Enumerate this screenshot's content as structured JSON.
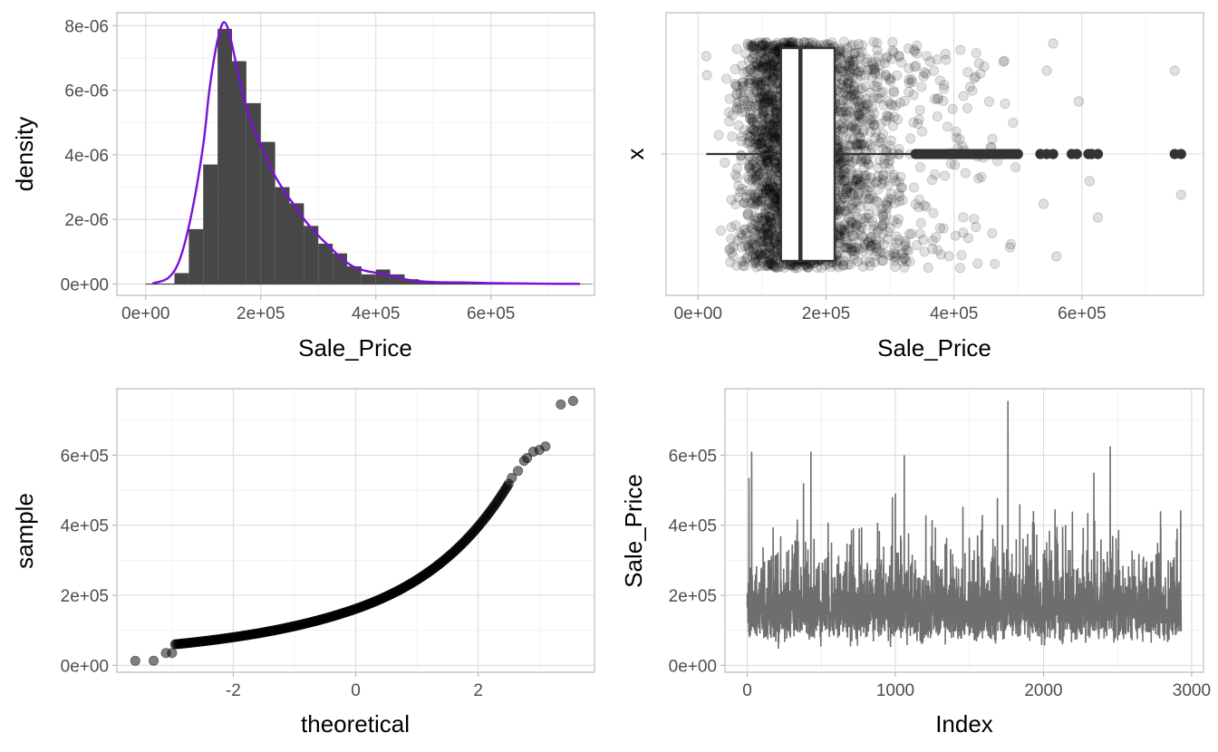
{
  "chart_data": [
    {
      "panel": "histogram-density",
      "type": "bar",
      "xlabel": "Sale_Price",
      "ylabel": "density",
      "xlim": [
        -50000,
        780000
      ],
      "ylim": [
        -3.5e-07,
        8.4e-06
      ],
      "x_ticks": [
        0,
        200000,
        400000,
        600000
      ],
      "x_tick_labels": [
        "0e+00",
        "2e+05",
        "4e+05",
        "6e+05"
      ],
      "y_ticks": [
        0,
        2e-06,
        4e-06,
        6e-06,
        8e-06
      ],
      "y_tick_labels": [
        "0e+00",
        "2e-06",
        "4e-06",
        "6e-06",
        "8e-06"
      ],
      "bin_width": 25000,
      "bin_starts": [
        0,
        25000,
        50000,
        75000,
        100000,
        125000,
        150000,
        175000,
        200000,
        225000,
        250000,
        275000,
        300000,
        325000,
        350000,
        375000,
        400000,
        425000,
        450000,
        475000,
        500000,
        525000,
        550000,
        575000,
        600000,
        625000,
        650000,
        675000,
        700000,
        725000,
        750000
      ],
      "bar_values": [
        0.0,
        0.0,
        3.4e-07,
        1.7e-06,
        3.7e-06,
        7.9e-06,
        6.9e-06,
        5.6e-06,
        4.4e-06,
        3e-06,
        2.5e-06,
        1.8e-06,
        1.25e-06,
        9.5e-07,
        5.5e-07,
        3e-07,
        4.5e-07,
        3e-07,
        1.5e-07,
        1e-07,
        5e-08,
        3e-08,
        3e-08,
        2e-08,
        3e-08,
        2e-08,
        0.0,
        0.0,
        0.0,
        1e-08,
        1e-08
      ],
      "density_x": [
        12000,
        40000,
        60000,
        80000,
        100000,
        110000,
        120000,
        130000,
        137000,
        145000,
        155000,
        165000,
        180000,
        200000,
        220000,
        240000,
        260000,
        280000,
        300000,
        320000,
        340000,
        360000,
        380000,
        400000,
        430000,
        460000,
        500000,
        550000,
        600000,
        650000,
        700000,
        755000
      ],
      "density_y": [
        2e-08,
        2e-07,
        8e-07,
        2.2e-06,
        4.3e-06,
        5.9e-06,
        7.1e-06,
        7.9e-06,
        8.1e-06,
        7.8e-06,
        7e-06,
        6.2e-06,
        5.2e-06,
        4.3e-06,
        3.5e-06,
        2.9e-06,
        2.4e-06,
        1.9e-06,
        1.5e-06,
        1.15e-06,
        8e-07,
        5.5e-07,
        4.2e-07,
        3.5e-07,
        2.5e-07,
        1.2e-07,
        6e-08,
        5e-08,
        3e-08,
        2e-08,
        1e-08,
        5e-09
      ],
      "bar_color": "#474747",
      "density_color": "#7a10d9"
    },
    {
      "panel": "boxplot-jitter",
      "type": "scatter",
      "xlabel": "Sale_Price",
      "ylabel": "x",
      "xlim": [
        -50000,
        790000
      ],
      "x_ticks": [
        0,
        200000,
        400000,
        600000
      ],
      "x_tick_labels": [
        "0e+00",
        "2e+05",
        "4e+05",
        "6e+05"
      ],
      "box": {
        "whisker_low": 12789,
        "q1": 129500,
        "median": 160000,
        "q3": 213500,
        "whisker_high": 339500
      },
      "outliers": [
        340000,
        345000,
        350000,
        355000,
        360000,
        365000,
        370000,
        375000,
        380000,
        385000,
        390000,
        395000,
        400000,
        405000,
        410000,
        415000,
        420000,
        425000,
        430000,
        435000,
        440000,
        445000,
        450000,
        455000,
        460000,
        465000,
        470000,
        475000,
        480000,
        485000,
        490000,
        495000,
        500000,
        535000,
        545000,
        555000,
        584000,
        592000,
        610000,
        615000,
        625000,
        745000,
        755000
      ],
      "point_color": "#000000",
      "box_fill": "#ffffff",
      "box_line": "#333333"
    },
    {
      "panel": "qq",
      "type": "scatter",
      "xlabel": "theoretical",
      "ylabel": "sample",
      "xlim": [
        -3.9,
        3.9
      ],
      "ylim": [
        -20000,
        790000
      ],
      "x_ticks": [
        -2,
        0,
        2
      ],
      "x_tick_labels": [
        "-2",
        "0",
        "2"
      ],
      "y_ticks": [
        0,
        200000,
        400000,
        600000
      ],
      "y_tick_labels": [
        "0e+00",
        "2e+05",
        "4e+05",
        "6e+05"
      ],
      "point_color": "#000000",
      "outlier_points": [
        [
          3.55,
          755000
        ],
        [
          3.35,
          745000
        ],
        [
          3.1,
          625000
        ],
        [
          3.0,
          615000
        ],
        [
          2.9,
          610000
        ],
        [
          2.8,
          592000
        ],
        [
          2.75,
          584000
        ],
        [
          2.65,
          555000
        ],
        [
          2.55,
          535000
        ],
        [
          -3.6,
          12789
        ],
        [
          -3.3,
          13100
        ],
        [
          -3.1,
          34900
        ],
        [
          -3.0,
          35000
        ]
      ]
    },
    {
      "panel": "index-series",
      "type": "line",
      "xlabel": "Index",
      "ylabel": "Sale_Price",
      "xlim": [
        -150,
        3080
      ],
      "ylim": [
        -20000,
        790000
      ],
      "x_ticks": [
        0,
        1000,
        2000,
        3000
      ],
      "x_tick_labels": [
        "0",
        "1000",
        "2000",
        "3000"
      ],
      "y_ticks": [
        0,
        200000,
        400000,
        600000
      ],
      "y_tick_labels": [
        "0e+00",
        "2e+05",
        "4e+05",
        "6e+05"
      ],
      "n_points": 2930,
      "peaks": [
        [
          30,
          610000
        ],
        [
          12,
          535000
        ],
        [
          430,
          610000
        ],
        [
          1060,
          600000
        ],
        [
          1760,
          755000
        ],
        [
          2450,
          625000
        ],
        [
          2340,
          550000
        ],
        [
          380,
          520000
        ],
        [
          1000,
          490000
        ],
        [
          1840,
          460000
        ],
        [
          2790,
          440000
        ],
        [
          980,
          480000
        ]
      ],
      "line_color": "#555555"
    }
  ]
}
